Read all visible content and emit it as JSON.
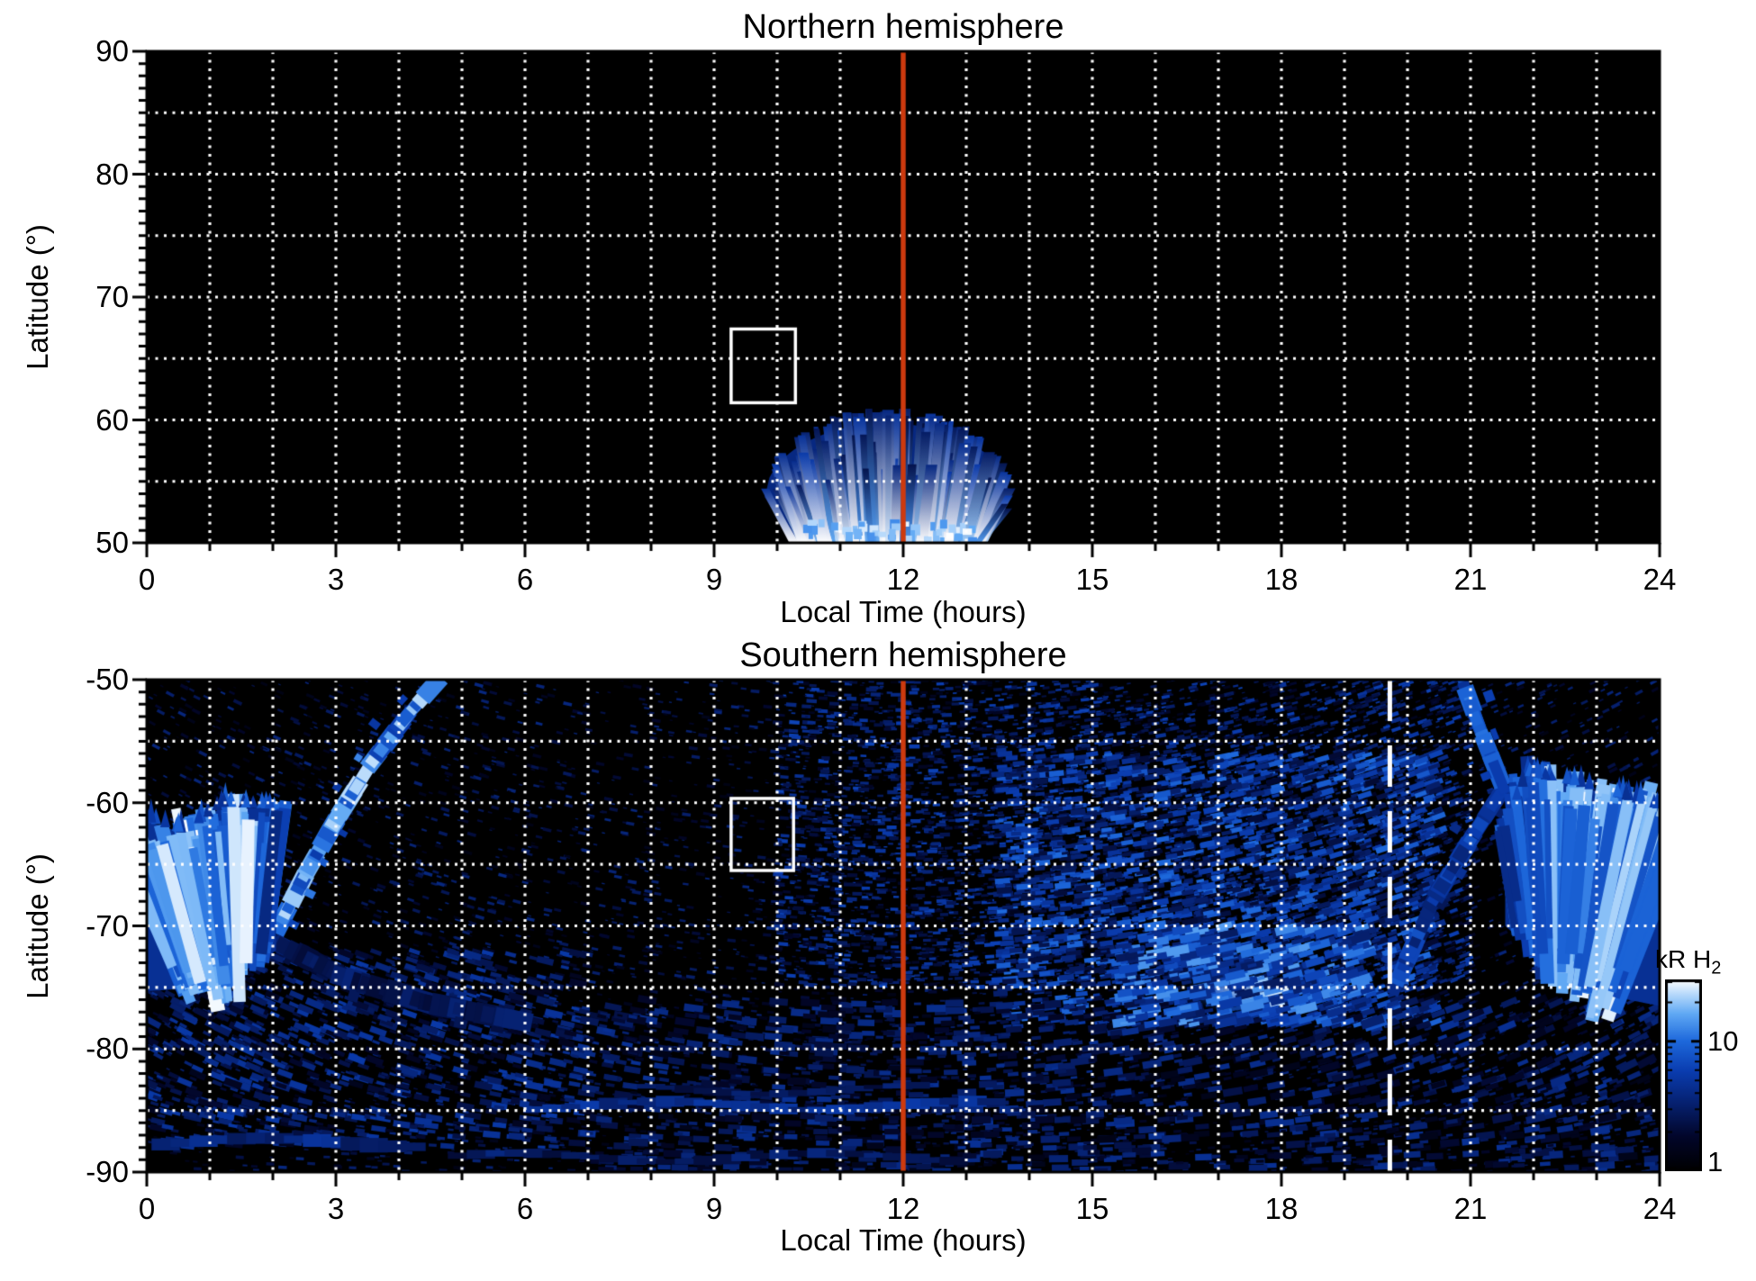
{
  "page": {
    "background": "#ffffff"
  },
  "chart_data": [
    {
      "id": "north",
      "type": "heatmap",
      "title": "Northern hemisphere",
      "xlabel": "Local Time (hours)",
      "ylabel": "Latitude (°)",
      "xlim": [
        0,
        24
      ],
      "ylim": [
        50,
        90
      ],
      "xticks": [
        0,
        3,
        6,
        9,
        12,
        15,
        18,
        21,
        24
      ],
      "x_minor_step": 1,
      "yticks": [
        90,
        80,
        70,
        60,
        50
      ],
      "y_minor_step": 1,
      "background": "#000000",
      "grid": {
        "x_step": 1,
        "y_step": 5,
        "color": "#ffffff",
        "style": "dotted"
      },
      "noon_line": {
        "x": 12,
        "color": "#cd3a0e",
        "width": 5.5
      },
      "roi_box": {
        "x_range": [
          9.27,
          10.29
        ],
        "lat_range": [
          61.4,
          67.4
        ],
        "color": "#ffffff"
      },
      "features": [
        {
          "kind": "vstreak_fan",
          "x_center": 11.75,
          "bottom_halfwidth": 1.5,
          "top_halfwidth": 1.95,
          "lat_base": 50,
          "lat_peak": 60.8,
          "lat_edge": 54,
          "streaks": 185,
          "seed": 5
        }
      ]
    },
    {
      "id": "south",
      "type": "heatmap",
      "title": "Southern hemisphere",
      "xlabel": "Local Time (hours)",
      "ylabel": "Latitude (°)",
      "xlim": [
        0,
        24
      ],
      "ylim": [
        -90,
        -50
      ],
      "xticks": [
        0,
        3,
        6,
        9,
        12,
        15,
        18,
        21,
        24
      ],
      "x_minor_step": 1,
      "yticks": [
        -50,
        -60,
        -70,
        -80,
        -90
      ],
      "y_minor_step": 1,
      "background": "#000000",
      "grid": {
        "x_step": 1,
        "y_step": 5,
        "color": "#ffffff",
        "style": "dotted"
      },
      "noon_line": {
        "x": 12,
        "color": "#cd3a0e",
        "width": 5.5
      },
      "dusk_line": {
        "x": 19.72,
        "color": "#ffffff",
        "width": 5,
        "dash": [
          46,
          27
        ]
      },
      "roi_box": {
        "x_range": [
          9.27,
          10.26
        ],
        "lat_range": [
          -65.5,
          -59.65
        ],
        "color": "#ffffff"
      },
      "features": [
        {
          "kind": "speckle",
          "x_range": [
            0,
            24
          ],
          "lat_range": [
            -90,
            -50
          ],
          "count": 5200,
          "t_range": [
            0.08,
            0.4
          ],
          "size_range": [
            3,
            10
          ],
          "seed": 11
        },
        {
          "kind": "speckle",
          "x_range": [
            10,
            21
          ],
          "lat_range": [
            -75,
            -50
          ],
          "count": 4200,
          "t_range": [
            0.12,
            0.55
          ],
          "size_range": [
            3,
            12
          ],
          "seed": 12
        },
        {
          "kind": "speckle",
          "x_range": [
            13.5,
            20.5
          ],
          "lat_range": [
            -78,
            -56
          ],
          "count": 2400,
          "t_range": [
            0.2,
            0.68
          ],
          "size_range": [
            5,
            18
          ],
          "seed": 13
        },
        {
          "kind": "speckle",
          "x_range": [
            0,
            7
          ],
          "lat_range": [
            -88,
            -72
          ],
          "count": 950,
          "t_range": [
            0.12,
            0.5
          ],
          "size_range": [
            6,
            20
          ],
          "seed": 14
        },
        {
          "kind": "speckle",
          "x_range": [
            7,
            24
          ],
          "lat_range": [
            -90,
            -76
          ],
          "count": 1500,
          "t_range": [
            0.1,
            0.45
          ],
          "size_range": [
            6,
            22
          ],
          "seed": 15
        },
        {
          "kind": "band",
          "x_range": [
            6.2,
            13.5
          ],
          "lat": -84.6,
          "thickness_deg": 0.7,
          "t": 0.42,
          "seed": 16
        },
        {
          "kind": "band",
          "x_range": [
            8,
            12.5
          ],
          "lat": -83.3,
          "thickness_deg": 0.5,
          "t": 0.3,
          "seed": 17
        },
        {
          "kind": "band",
          "x_range": [
            0.3,
            4.2
          ],
          "lat": -87.6,
          "thickness_deg": 0.9,
          "t": 0.38,
          "seed": 18
        },
        {
          "kind": "band",
          "x_range": [
            5,
            13
          ],
          "lat": -88.8,
          "thickness_deg": 0.6,
          "t": 0.3,
          "seed": 19
        },
        {
          "kind": "arc",
          "pts": [
            [
              2.05,
              -70.5
            ],
            [
              2.55,
              -65.5
            ],
            [
              3.05,
              -61
            ],
            [
              3.6,
              -56.5
            ],
            [
              4.2,
              -52.5
            ],
            [
              4.6,
              -50.2
            ]
          ],
          "width_deg": 1.5,
          "t": 0.72,
          "seed": 20
        },
        {
          "kind": "arc",
          "pts": [
            [
              2.1,
              -71.5
            ],
            [
              3.2,
              -74.3
            ],
            [
              4.5,
              -76.3
            ],
            [
              6.0,
              -77.8
            ]
          ],
          "width_deg": 1.8,
          "t": 0.3,
          "seed": 21
        },
        {
          "kind": "arc",
          "pts": [
            [
              19.85,
              -74.5
            ],
            [
              20.4,
              -68
            ],
            [
              21.0,
              -63
            ],
            [
              21.5,
              -59
            ]
          ],
          "width_deg": 1.6,
          "t": 0.5,
          "seed": 22
        },
        {
          "kind": "arc",
          "pts": [
            [
              20.9,
              -50.5
            ],
            [
              21.15,
              -54
            ],
            [
              21.5,
              -58.5
            ]
          ],
          "width_deg": 1.4,
          "t": 0.55,
          "seed": 23
        },
        {
          "kind": "fan",
          "x_range": [
            0,
            2.05
          ],
          "top_pts": [
            [
              0,
              -61.5
            ],
            [
              0.6,
              -62.5
            ],
            [
              1.2,
              -60.3
            ],
            [
              2.05,
              -60.5
            ]
          ],
          "bot_pts": [
            [
              0,
              -75.3
            ],
            [
              1.0,
              -75.0
            ],
            [
              1.6,
              -73.5
            ],
            [
              2.05,
              -72
            ]
          ],
          "core": {
            "x_range": [
              0,
              1.75
            ],
            "lat_range": [
              -74.5,
              -65.5
            ]
          },
          "streaks": 150,
          "angle_deg": [
            -24,
            8
          ],
          "seed": 24
        },
        {
          "kind": "fan",
          "x_range": [
            21.55,
            24
          ],
          "top_pts": [
            [
              21.55,
              -62
            ],
            [
              21.9,
              -57.8
            ],
            [
              22.6,
              -58.5
            ],
            [
              23.3,
              -59.5
            ],
            [
              24,
              -60.5
            ]
          ],
          "bot_pts": [
            [
              21.55,
              -70
            ],
            [
              22.2,
              -73
            ],
            [
              23,
              -75.5
            ],
            [
              24,
              -76.5
            ]
          ],
          "core": {
            "x_range": [
              22.2,
              23.8
            ],
            "lat_range": [
              -73.5,
              -63
            ]
          },
          "streaks": 160,
          "angle_deg": [
            -10,
            22
          ],
          "seed": 25
        },
        {
          "kind": "patch",
          "x": 17.35,
          "lat": -75.3,
          "rx_h": 1.0,
          "ry_deg": 1.9,
          "t": 0.92,
          "seed": 26
        },
        {
          "kind": "speckle",
          "x_range": [
            15.5,
            19.5
          ],
          "lat_range": [
            -78,
            -70
          ],
          "count": 380,
          "t_range": [
            0.3,
            0.8
          ],
          "size_range": [
            8,
            26
          ],
          "seed": 27
        }
      ]
    }
  ],
  "colorbar": {
    "title": "kR H",
    "title_sub": "2",
    "scale": "log",
    "range": [
      1,
      30
    ],
    "tick_values": [
      10,
      1
    ],
    "tick_labels": [
      "10",
      "1"
    ],
    "minor_ticks": [
      2,
      3,
      4,
      5,
      6,
      7,
      8,
      9,
      20,
      30
    ],
    "gradient_stops": [
      "#000000",
      "#02062a",
      "#06206e",
      "#0a3caf",
      "#1e69dc",
      "#5fa8f4",
      "#b4d8fb",
      "#ffffff"
    ]
  }
}
